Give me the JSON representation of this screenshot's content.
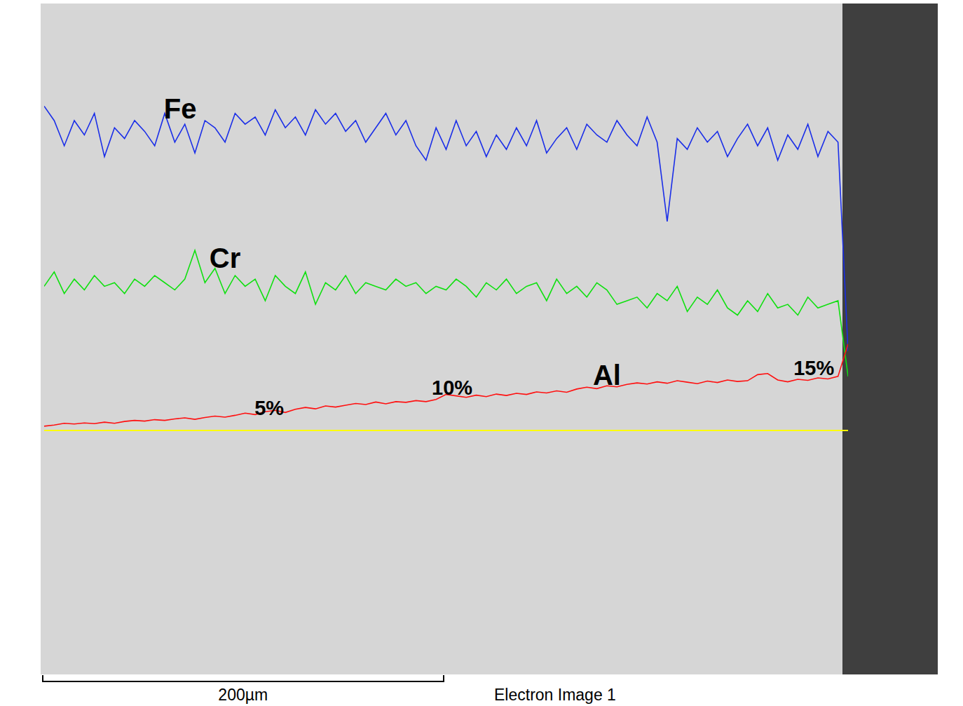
{
  "chart_data": {
    "type": "line",
    "tick_labels": false,
    "grid": false,
    "xlim": [
      0,
      400
    ],
    "ylim": [
      0,
      100
    ],
    "x": [
      0,
      5,
      10,
      15,
      20,
      25,
      30,
      35,
      40,
      45,
      50,
      55,
      60,
      65,
      70,
      75,
      80,
      85,
      90,
      95,
      100,
      105,
      110,
      115,
      120,
      125,
      130,
      135,
      140,
      145,
      150,
      155,
      160,
      165,
      170,
      175,
      180,
      185,
      190,
      195,
      200,
      205,
      210,
      215,
      220,
      225,
      230,
      235,
      240,
      245,
      250,
      255,
      260,
      265,
      270,
      275,
      280,
      285,
      290,
      295,
      300,
      305,
      310,
      315,
      320,
      325,
      330,
      335,
      340,
      345,
      350,
      355,
      360,
      365,
      370,
      375,
      380,
      385,
      390,
      395,
      400
    ],
    "series": [
      {
        "name": "Fe",
        "color": "#1a2ee8",
        "values": [
          90,
          86,
          79,
          86,
          82,
          88,
          76,
          84,
          81,
          86,
          83,
          79,
          88,
          80,
          85,
          77,
          86,
          84,
          80,
          88,
          85,
          87,
          82,
          89,
          84,
          87,
          82,
          89,
          85,
          88,
          83,
          86,
          80,
          84,
          88,
          82,
          86,
          79,
          75,
          84,
          78,
          86,
          79,
          83,
          76,
          82,
          78,
          84,
          79,
          86,
          77,
          81,
          84,
          78,
          85,
          82,
          80,
          86,
          82,
          79,
          87,
          80,
          58,
          81,
          78,
          84,
          80,
          83,
          76,
          81,
          85,
          79,
          84,
          75,
          82,
          78,
          85,
          76,
          83,
          80,
          22
        ]
      },
      {
        "name": "Cr",
        "color": "#10e010",
        "values": [
          40,
          44,
          38,
          42,
          39,
          43,
          40,
          41,
          38,
          42,
          40,
          43,
          41,
          39,
          42,
          50,
          41,
          45,
          38,
          43,
          40,
          42,
          36,
          43,
          40,
          38,
          44,
          35,
          41,
          39,
          43,
          38,
          41,
          40,
          39,
          42,
          40,
          41,
          38,
          40,
          39,
          42,
          40,
          37,
          41,
          39,
          42,
          38,
          40,
          41,
          36,
          42,
          38,
          40,
          37,
          41,
          39,
          35,
          36,
          37,
          34,
          38,
          36,
          40,
          33,
          37,
          35,
          39,
          34,
          32,
          36,
          33,
          38,
          34,
          35,
          32,
          37,
          34,
          35,
          36,
          15
        ]
      },
      {
        "name": "Al",
        "color": "#ff1010",
        "values": [
          1.2,
          1.5,
          2.0,
          1.8,
          2.1,
          1.9,
          2.3,
          2.0,
          2.5,
          2.8,
          2.6,
          3.0,
          2.8,
          3.2,
          3.5,
          3.1,
          3.6,
          4.0,
          3.7,
          4.2,
          4.8,
          4.4,
          5.2,
          5.6,
          5.0,
          5.9,
          6.4,
          6.0,
          6.8,
          6.5,
          7.0,
          7.5,
          7.2,
          7.9,
          7.4,
          8.0,
          7.8,
          8.3,
          8.0,
          8.6,
          10.0,
          9.6,
          9.2,
          9.8,
          9.4,
          10.1,
          9.7,
          10.3,
          10.0,
          10.7,
          10.4,
          11.0,
          10.6,
          11.5,
          12.0,
          11.6,
          12.4,
          12.1,
          12.8,
          13.2,
          12.9,
          13.5,
          13.1,
          13.8,
          13.4,
          13.0,
          13.7,
          13.3,
          14.0,
          13.6,
          13.8,
          15.5,
          15.8,
          14.0,
          13.5,
          14.2,
          13.9,
          14.6,
          14.3,
          15.0,
          24
        ]
      }
    ],
    "annotations": [
      {
        "text": "Fe",
        "x": 67.7,
        "y": 89.3
      },
      {
        "text": "Cr",
        "x": 90,
        "y": 47.9
      },
      {
        "text": "Al",
        "x": 280,
        "y": 15.4
      },
      {
        "text": "5%",
        "x": 112,
        "y": 6.2
      },
      {
        "text": "10%",
        "x": 203,
        "y": 11.9
      },
      {
        "text": "15%",
        "x": 383,
        "y": 17.3
      }
    ],
    "reference_line": {
      "y": 0,
      "color": "#ffff00"
    },
    "scale_bar": {
      "length": 200,
      "label": "200µm"
    },
    "caption": "Electron Image 1"
  }
}
